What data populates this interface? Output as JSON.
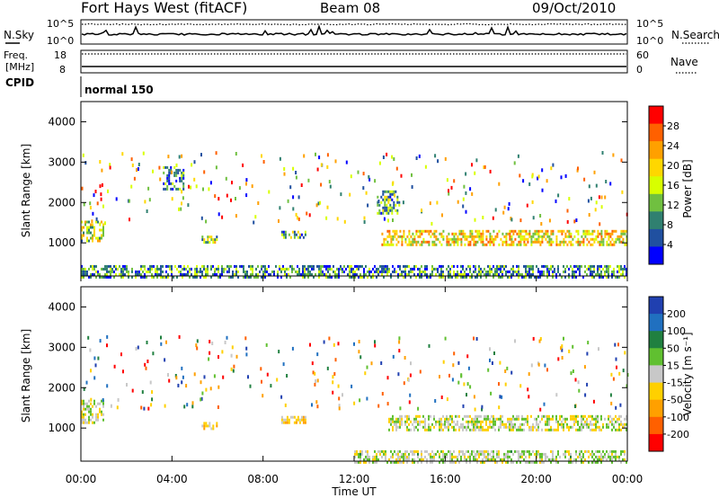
{
  "header": {
    "title": "Fort Hays West (fitACF)",
    "beam": "Beam 08",
    "date": "09/Oct/2010"
  },
  "noise_panel": {
    "left_label": "N.Sky",
    "right_label": "N.Search",
    "left_ticks": [
      "10^5",
      "10^0"
    ],
    "right_ticks": [
      "10^5",
      "10^0"
    ],
    "left_line_style": "solid",
    "right_line_style": "dotted"
  },
  "freq_panel": {
    "left_label_top": "Freq.",
    "left_label_bottom": "[MHz]",
    "right_label": "Nave",
    "left_ticks": [
      "18",
      "8"
    ],
    "right_ticks": [
      "60",
      "0"
    ],
    "right_line_style": "dotted"
  },
  "cpid_panel": {
    "label": "CPID",
    "program": "normal 150"
  },
  "power_colorbar": {
    "title": "Power [dB]",
    "ticks": [
      "28",
      "24",
      "20",
      "16",
      "12",
      "8",
      "4"
    ],
    "colors": [
      "#ff0000",
      "#ff6000",
      "#ffa000",
      "#ffd700",
      "#d8ff00",
      "#70c040",
      "#308070",
      "#2050a0",
      "#0000ff"
    ]
  },
  "velocity_colorbar": {
    "title": "Velocity [m s⁻¹]",
    "ticks": [
      "200",
      "100",
      "50",
      "15",
      "-15",
      "-50",
      "-100",
      "-200"
    ],
    "colors": [
      "#2040b0",
      "#2070c0",
      "#208040",
      "#60c030",
      "#c8c8c8",
      "#ffd000",
      "#ffa000",
      "#ff6000",
      "#ff0000"
    ]
  },
  "chart_data": [
    {
      "type": "heatmap",
      "name": "power",
      "ylabel": "Slant Range [km]",
      "xlabel": "",
      "x_ticks": [
        "00:00",
        "04:00",
        "08:00",
        "12:00",
        "16:00",
        "20:00",
        "00:00"
      ],
      "y_ticks": [
        "1000",
        "2000",
        "3000",
        "4000"
      ],
      "xlim_hours": [
        0,
        24
      ],
      "ylim_km": [
        180,
        4500
      ],
      "value_range_db": [
        0,
        30
      ],
      "regions": [
        {
          "t0": 13.2,
          "t1": 24.0,
          "r_center": 1150,
          "r_half": 170,
          "value": 18
        },
        {
          "t0": 0.0,
          "t1": 1.0,
          "r_center": 1300,
          "r_half": 250,
          "value": 14
        },
        {
          "t0": 13.0,
          "t1": 14.0,
          "r_center": 2000,
          "r_half": 300,
          "value": 10
        },
        {
          "t0": 5.3,
          "t1": 6.0,
          "r_center": 1100,
          "r_half": 80,
          "value": 14
        },
        {
          "t0": 8.8,
          "t1": 9.9,
          "r_center": 1220,
          "r_half": 80,
          "value": 10
        },
        {
          "t0": 3.6,
          "t1": 4.5,
          "r_center": 2600,
          "r_half": 300,
          "value": 8
        },
        {
          "t0": 0.0,
          "t1": 24.0,
          "r_center": 300,
          "r_half": 150,
          "value": 8
        }
      ]
    },
    {
      "type": "heatmap",
      "name": "velocity",
      "ylabel": "Slant Range [km]",
      "xlabel": "Time UT",
      "x_ticks": [
        "00:00",
        "04:00",
        "08:00",
        "12:00",
        "16:00",
        "20:00",
        "00:00"
      ],
      "y_ticks": [
        "1000",
        "2000",
        "3000",
        "4000"
      ],
      "xlim_hours": [
        0,
        24
      ],
      "ylim_km": [
        180,
        4500
      ],
      "value_range_ms": [
        -250,
        250
      ],
      "regions": [
        {
          "t0": 13.5,
          "t1": 24.0,
          "r_center": 1150,
          "r_half": 170,
          "value": 0
        },
        {
          "t0": 0.0,
          "t1": 1.0,
          "r_center": 1400,
          "r_half": 300,
          "value": 0
        },
        {
          "t0": 5.3,
          "t1": 6.0,
          "r_center": 1080,
          "r_half": 70,
          "value": -60
        },
        {
          "t0": 8.8,
          "t1": 9.9,
          "r_center": 1220,
          "r_half": 80,
          "value": -40
        },
        {
          "t0": 12.0,
          "t1": 24.0,
          "r_center": 300,
          "r_half": 150,
          "value": 15
        }
      ]
    }
  ]
}
